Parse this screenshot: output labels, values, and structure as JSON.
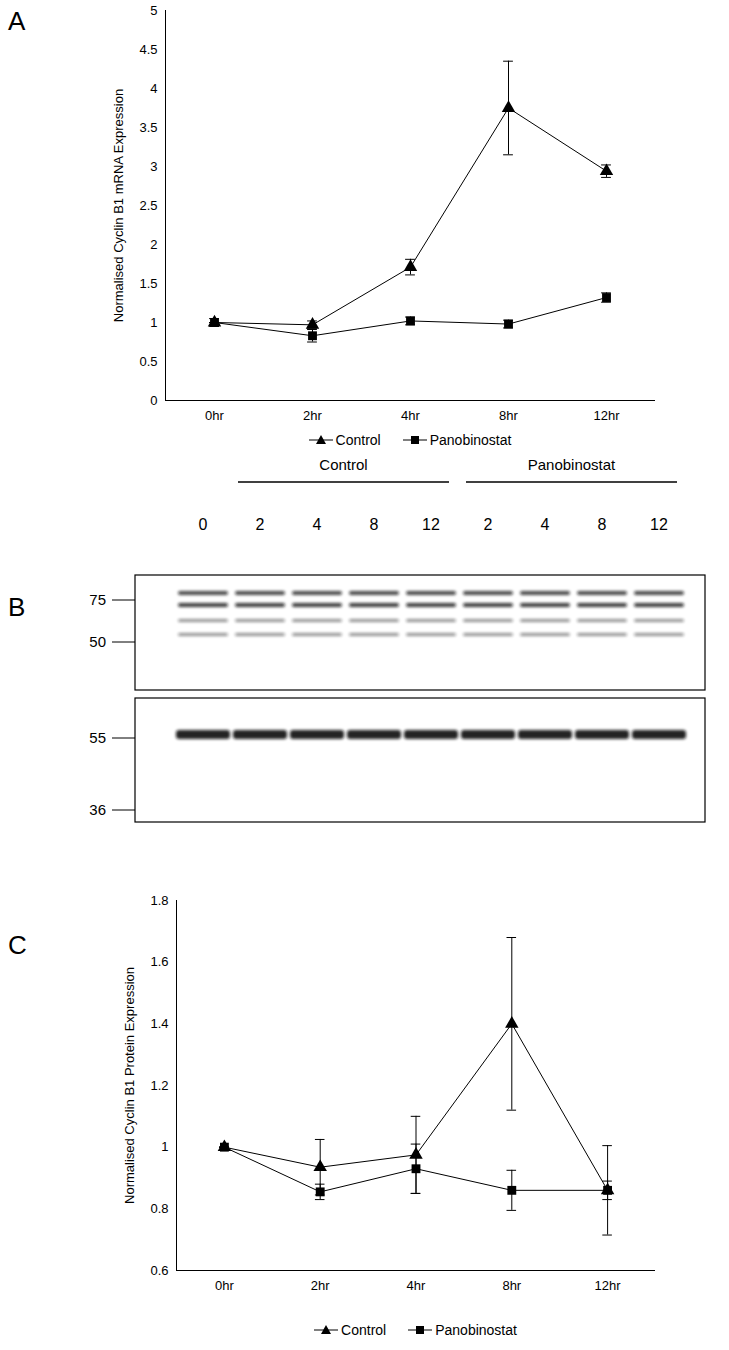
{
  "chart_data": [
    {
      "type": "line",
      "label": "A",
      "ylabel": "Normalised Cyclin B1 mRNA Expression",
      "categories": [
        "0hr",
        "2hr",
        "4hr",
        "8hr",
        "12hr"
      ],
      "ylim": [
        0,
        5
      ],
      "yticks": [
        0,
        0.5,
        1,
        1.5,
        2,
        2.5,
        3,
        3.5,
        4,
        4.5,
        5
      ],
      "grid": false,
      "legend": "bottom",
      "series": [
        {
          "name": "Control",
          "color": "#000000",
          "marker": "triangle",
          "values": [
            1,
            0.97,
            1.71,
            3.75,
            2.94
          ],
          "errors": [
            0,
            0.05,
            0.1,
            0.6,
            0.08
          ]
        },
        {
          "name": "Panobinostat",
          "color": "#000000",
          "marker": "square",
          "values": [
            1,
            0.83,
            1.02,
            0.98,
            1.32
          ],
          "errors": [
            0.05,
            0.08,
            0.05,
            0.05,
            0.06
          ]
        }
      ]
    },
    {
      "type": "line",
      "label": "C",
      "ylabel": "Normalised Cyclin B1 Protein Expression",
      "categories": [
        "0hr",
        "2hr",
        "4hr",
        "8hr",
        "12hr"
      ],
      "ylim": [
        0.6,
        1.8
      ],
      "yticks": [
        0.6,
        0.8,
        1,
        1.2,
        1.4,
        1.6,
        1.8
      ],
      "grid": false,
      "legend": "bottom",
      "series": [
        {
          "name": "Control",
          "color": "#000000",
          "marker": "triangle",
          "values": [
            1,
            0.935,
            0.975,
            1.4,
            0.86
          ],
          "errors": [
            0,
            0.09,
            0.125,
            0.28,
            0.145
          ]
        },
        {
          "name": "Panobinostat",
          "color": "#000000",
          "marker": "square",
          "values": [
            1,
            0.855,
            0.93,
            0.86,
            0.86
          ],
          "errors": [
            0,
            0.025,
            0.08,
            0.065,
            0.03
          ]
        }
      ]
    }
  ],
  "blot": {
    "label": "B",
    "lanes": [
      {
        "lane": 0,
        "group": null
      },
      {
        "lane": 2,
        "group": "Control"
      },
      {
        "lane": 4,
        "group": "Control"
      },
      {
        "lane": 8,
        "group": "Control"
      },
      {
        "lane": 12,
        "group": "Control"
      },
      {
        "lane": 2,
        "group": "Panobinostat"
      },
      {
        "lane": 4,
        "group": "Panobinostat"
      },
      {
        "lane": 8,
        "group": "Panobinostat"
      },
      {
        "lane": 12,
        "group": "Panobinostat"
      }
    ],
    "markers_upper": [
      75,
      50
    ],
    "markers_lower": [
      55,
      36
    ]
  }
}
